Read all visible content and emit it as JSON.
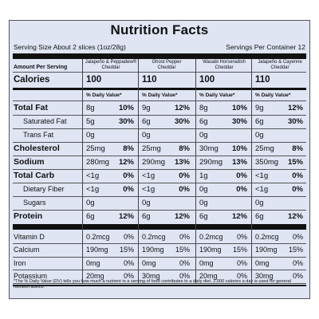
{
  "title": "Nutrition Facts",
  "serving_size": "Serving Size  About 2 slices (1oz/28g)",
  "servings_per_container": "Servings Per Container 12",
  "amount_per_serving": "Amount Per Serving",
  "products": [
    {
      "line1": "Jalapeño & Peppadew®",
      "line2": "Cheddar"
    },
    {
      "line1": "Ghost Pepper",
      "line2": "Cheddar"
    },
    {
      "line1": "Wasabi Horseradish",
      "line2": "Cheddar"
    },
    {
      "line1": "Jalapeño & Cayenne",
      "line2": "Cheddar"
    }
  ],
  "calories_label": "Calories",
  "calories": [
    "100",
    "110",
    "100",
    "110"
  ],
  "dv_header": "% Daily Value*",
  "rows": [
    {
      "label": "Total Fat",
      "style": "major",
      "values": [
        [
          "8g",
          "10%"
        ],
        [
          "9g",
          "12%"
        ],
        [
          "8g",
          "10%"
        ],
        [
          "9g",
          "12%"
        ]
      ]
    },
    {
      "label": "Saturated Fat",
      "style": "sub",
      "values": [
        [
          "5g",
          "30%"
        ],
        [
          "6g",
          "30%"
        ],
        [
          "6g",
          "30%"
        ],
        [
          "6g",
          "30%"
        ]
      ]
    },
    {
      "label": "Trans Fat",
      "style": "sub",
      "values": [
        [
          "0g",
          ""
        ],
        [
          "0g",
          ""
        ],
        [
          "0g",
          ""
        ],
        [
          "0g",
          ""
        ]
      ]
    },
    {
      "label": "Cholesterol",
      "style": "major",
      "values": [
        [
          "25mg",
          "8%"
        ],
        [
          "25mg",
          "8%"
        ],
        [
          "30mg",
          "10%"
        ],
        [
          "25mg",
          "8%"
        ]
      ]
    },
    {
      "label": "Sodium",
      "style": "major",
      "values": [
        [
          "280mg",
          "12%"
        ],
        [
          "290mg",
          "13%"
        ],
        [
          "290mg",
          "13%"
        ],
        [
          "350mg",
          "15%"
        ]
      ]
    },
    {
      "label": "Total Carb",
      "style": "major",
      "values": [
        [
          "<1g",
          "0%"
        ],
        [
          "<1g",
          "0%"
        ],
        [
          "1g",
          "0%"
        ],
        [
          "<1g",
          "0%"
        ]
      ]
    },
    {
      "label": "Dietary Fiber",
      "style": "sub",
      "values": [
        [
          "<1g",
          "0%"
        ],
        [
          "<1g",
          "0%"
        ],
        [
          "0g",
          "0%"
        ],
        [
          "<1g",
          "0%"
        ]
      ]
    },
    {
      "label": "Sugars",
      "style": "sub",
      "values": [
        [
          "0g",
          ""
        ],
        [
          "0g",
          ""
        ],
        [
          "0g",
          ""
        ],
        [
          "0g",
          ""
        ]
      ]
    },
    {
      "label": "Protein",
      "style": "major",
      "values": [
        [
          "6g",
          "12%"
        ],
        [
          "6g",
          "12%"
        ],
        [
          "6g",
          "12%"
        ],
        [
          "6g",
          "12%"
        ]
      ]
    }
  ],
  "micros": [
    {
      "label": "Vitamin D",
      "values": [
        [
          "0.2mcg",
          "0%"
        ],
        [
          "0.2mcg",
          "0%"
        ],
        [
          "0.2mcg",
          "0%"
        ],
        [
          "0.2mcg",
          "0%"
        ]
      ]
    },
    {
      "label": "Calcium",
      "values": [
        [
          "190mg",
          "15%"
        ],
        [
          "190mg",
          "15%"
        ],
        [
          "190mg",
          "15%"
        ],
        [
          "190mg",
          "15%"
        ]
      ]
    },
    {
      "label": "Iron",
      "values": [
        [
          "0mg",
          "0%"
        ],
        [
          "0mg",
          "0%"
        ],
        [
          "0mg",
          "0%"
        ],
        [
          "0mg",
          "0%"
        ]
      ]
    },
    {
      "label": "Potassium",
      "values": [
        [
          "20mg",
          "0%"
        ],
        [
          "30mg",
          "0%"
        ],
        [
          "20mg",
          "0%"
        ],
        [
          "30mg",
          "0%"
        ]
      ]
    }
  ],
  "footnote": "*The % Daily Value (DV) tells you how much a nutrient in a serving of food contributes to a daily diet. 2,000 calories a day is used for general nutrition advice."
}
